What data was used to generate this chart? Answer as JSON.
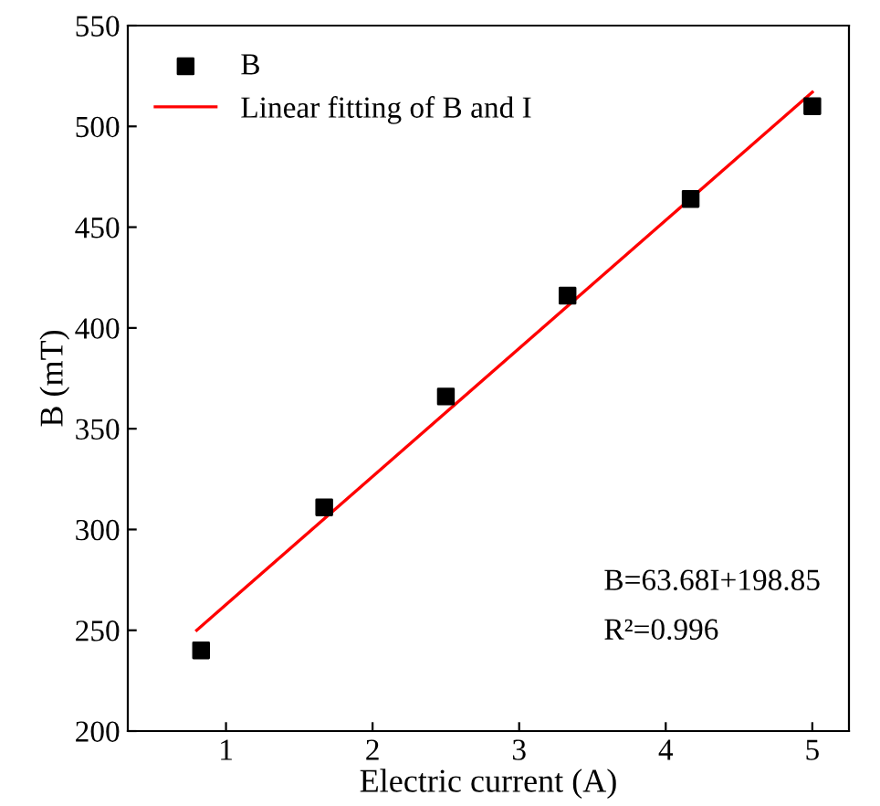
{
  "chart_data": {
    "type": "scatter",
    "xlabel": "Electric current (A)",
    "ylabel": "B (mT)",
    "series": [
      {
        "name": "B",
        "color": "#000000",
        "marker": "square",
        "x": [
          0.83,
          1.67,
          2.5,
          3.33,
          4.17,
          5.0
        ],
        "values": [
          240,
          311,
          366,
          416,
          464,
          510
        ]
      },
      {
        "name": "Linear fitting of B and I",
        "type": "line",
        "color": "#ff0000",
        "marker": "none",
        "line_style": "solid",
        "x": [
          0.8,
          5.0
        ],
        "values": [
          250,
          517
        ]
      }
    ],
    "xlim": [
      0.33,
      5.25
    ],
    "xticks": [
      1,
      2,
      3,
      4,
      5
    ],
    "ylim": [
      200,
      550
    ],
    "yticks": [
      200,
      250,
      300,
      350,
      400,
      450,
      500,
      550
    ],
    "legend": "top left",
    "grid": false,
    "annotations": [
      "B=63.68I+198.85",
      "R²=0.996"
    ]
  }
}
